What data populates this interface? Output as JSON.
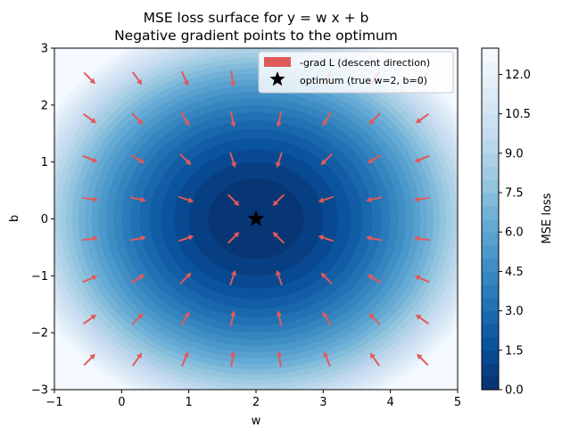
{
  "chart_data": {
    "type": "contour-quiver",
    "title": "MSE loss surface for y = w x + b",
    "subtitle": "Negative gradient points to the optimum",
    "xlabel": "w",
    "ylabel": "b",
    "xlim": [
      -1,
      5
    ],
    "ylim": [
      -3,
      3
    ],
    "xticks": [
      -1,
      0,
      1,
      2,
      3,
      4,
      5
    ],
    "xtick_labels": [
      "−1",
      "0",
      "1",
      "2",
      "3",
      "4",
      "5"
    ],
    "yticks": [
      -3,
      -2,
      -1,
      0,
      1,
      2,
      3
    ],
    "ytick_labels": [
      "−3",
      "−2",
      "−1",
      "0",
      "1",
      "2",
      "3"
    ],
    "grid": false,
    "legend_position": "top-right",
    "colorbar": {
      "label": "MSE loss",
      "range": [
        0,
        13
      ],
      "ticks": [
        0.0,
        1.5,
        3.0,
        4.5,
        6.0,
        7.5,
        9.0,
        10.5,
        12.0
      ],
      "tick_labels": [
        "0.0",
        "1.5",
        "3.0",
        "4.5",
        "6.0",
        "7.5",
        "9.0",
        "10.5",
        "12.0"
      ],
      "colormap": "Blues_r"
    },
    "surface": {
      "formula": "L = (w - 2)^2 + b^2",
      "w_weight": 1,
      "b_weight": 1,
      "optimum": [
        2,
        0
      ]
    },
    "quiver": {
      "label": "-grad L (descent direction)",
      "color": "#e05a5a",
      "w_points": [
        -0.5,
        0.214,
        0.929,
        1.643,
        2.357,
        3.071,
        3.786,
        4.5
      ],
      "b_points": [
        -2.5,
        -1.786,
        -1.071,
        -0.357,
        0.357,
        1.071,
        1.786,
        2.5
      ]
    },
    "optimum_marker": {
      "label": "optimum (true w=2, b=0)",
      "w": 2,
      "b": 0,
      "color": "#000000"
    }
  }
}
